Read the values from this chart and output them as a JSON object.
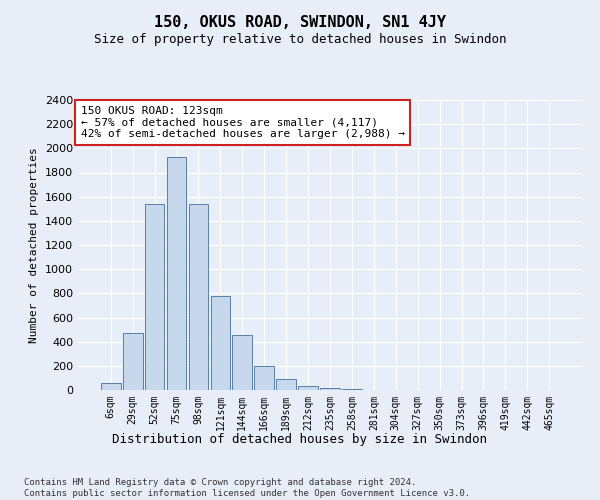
{
  "title": "150, OKUS ROAD, SWINDON, SN1 4JY",
  "subtitle": "Size of property relative to detached houses in Swindon",
  "xlabel": "Distribution of detached houses by size in Swindon",
  "ylabel": "Number of detached properties",
  "categories": [
    "6sqm",
    "29sqm",
    "52sqm",
    "75sqm",
    "98sqm",
    "121sqm",
    "144sqm",
    "166sqm",
    "189sqm",
    "212sqm",
    "235sqm",
    "258sqm",
    "281sqm",
    "304sqm",
    "327sqm",
    "350sqm",
    "373sqm",
    "396sqm",
    "419sqm",
    "442sqm",
    "465sqm"
  ],
  "values": [
    60,
    475,
    1540,
    1930,
    1540,
    780,
    455,
    195,
    90,
    30,
    20,
    5,
    2,
    1,
    0,
    0,
    0,
    0,
    0,
    0,
    0
  ],
  "bar_color": "#c8d8ec",
  "bar_edge_color": "#5580a8",
  "annotation_box_facecolor": "#ffffff",
  "annotation_border_color": "#cc2222",
  "annotation_text_line1": "150 OKUS ROAD: 123sqm",
  "annotation_text_line2": "← 57% of detached houses are smaller (4,117)",
  "annotation_text_line3": "42% of semi-detached houses are larger (2,988) →",
  "ylim_max": 2400,
  "ytick_interval": 200,
  "background_color": "#e8eef8",
  "footer_line1": "Contains HM Land Registry data © Crown copyright and database right 2024.",
  "footer_line2": "Contains public sector information licensed under the Open Government Licence v3.0."
}
